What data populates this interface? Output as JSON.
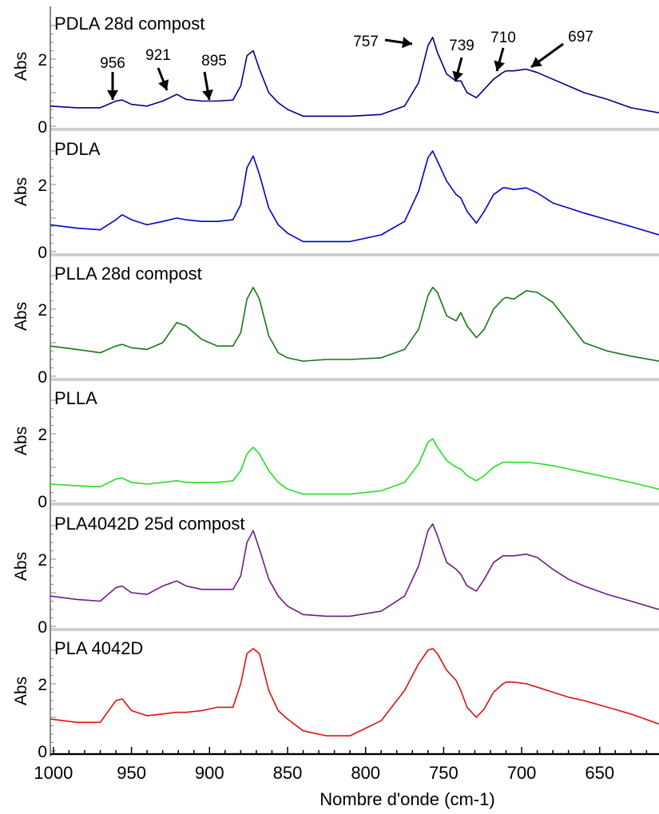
{
  "chart_data": {
    "type": "line",
    "xlabel": "Nombre d'onde (cm-1)",
    "xlim": [
      1002,
      612
    ],
    "x_reversed": true,
    "x_ticks": [
      1000,
      950,
      900,
      850,
      800,
      750,
      700,
      650
    ],
    "x_tick_labels": [
      "1000",
      "950",
      "900",
      "850",
      "800",
      "750",
      "700",
      "650"
    ],
    "ylabel": "Abs",
    "ylim": [
      0,
      3.1
    ],
    "y_tick_labels": [
      "0",
      "2"
    ],
    "y_ticks": [
      0,
      2
    ],
    "layout": "stacked panels, shared x axis",
    "panels": [
      {
        "title": "PDLA 28d compost",
        "color": "#00008B",
        "x": [
          1002,
          985,
          970,
          960,
          956,
          950,
          940,
          930,
          921,
          915,
          905,
          895,
          885,
          880,
          876,
          872,
          868,
          862,
          856,
          850,
          840,
          825,
          810,
          790,
          775,
          766,
          760,
          757,
          754,
          748,
          742,
          739,
          735,
          729,
          724,
          718,
          712,
          710,
          705,
          697,
          690,
          680,
          670,
          660,
          645,
          630,
          612
        ],
        "y": [
          0.6,
          0.55,
          0.55,
          0.75,
          0.78,
          0.65,
          0.6,
          0.75,
          0.95,
          0.8,
          0.75,
          0.75,
          0.78,
          1.2,
          2.1,
          2.25,
          1.7,
          1.0,
          0.7,
          0.5,
          0.3,
          0.3,
          0.3,
          0.35,
          0.6,
          1.3,
          2.4,
          2.65,
          2.2,
          1.55,
          1.35,
          1.35,
          1.0,
          0.85,
          1.1,
          1.4,
          1.6,
          1.65,
          1.65,
          1.7,
          1.6,
          1.4,
          1.2,
          1.0,
          0.8,
          0.55,
          0.4
        ]
      },
      {
        "title": "PDLA",
        "color": "#0000CD",
        "x": [
          1002,
          985,
          970,
          960,
          956,
          950,
          940,
          930,
          921,
          915,
          905,
          895,
          885,
          880,
          876,
          872,
          868,
          862,
          856,
          850,
          840,
          825,
          810,
          790,
          775,
          766,
          760,
          757,
          754,
          748,
          742,
          739,
          735,
          729,
          724,
          718,
          712,
          710,
          705,
          697,
          690,
          680,
          670,
          660,
          645,
          630,
          612
        ],
        "y": [
          0.8,
          0.7,
          0.65,
          0.95,
          1.1,
          0.95,
          0.8,
          0.9,
          1.0,
          0.95,
          0.9,
          0.9,
          0.95,
          1.4,
          2.5,
          2.85,
          2.3,
          1.3,
          0.8,
          0.55,
          0.3,
          0.3,
          0.3,
          0.5,
          0.9,
          1.8,
          2.8,
          3.0,
          2.7,
          2.1,
          1.7,
          1.6,
          1.2,
          0.85,
          1.2,
          1.7,
          1.9,
          1.9,
          1.85,
          1.9,
          1.75,
          1.45,
          1.3,
          1.15,
          0.95,
          0.75,
          0.5
        ]
      },
      {
        "title": "PLLA 28d compost",
        "color": "#147814",
        "x": [
          1002,
          985,
          970,
          960,
          956,
          950,
          940,
          930,
          921,
          915,
          905,
          895,
          885,
          880,
          876,
          872,
          868,
          862,
          856,
          850,
          840,
          825,
          810,
          790,
          775,
          766,
          760,
          757,
          754,
          748,
          742,
          739,
          735,
          729,
          724,
          718,
          712,
          710,
          705,
          697,
          690,
          680,
          670,
          660,
          645,
          630,
          612
        ],
        "y": [
          0.9,
          0.8,
          0.7,
          0.9,
          0.95,
          0.85,
          0.8,
          1.0,
          1.6,
          1.5,
          1.1,
          0.9,
          0.9,
          1.3,
          2.3,
          2.65,
          2.3,
          1.2,
          0.7,
          0.55,
          0.45,
          0.5,
          0.5,
          0.55,
          0.8,
          1.4,
          2.4,
          2.65,
          2.5,
          1.8,
          1.65,
          1.9,
          1.5,
          1.15,
          1.4,
          2.0,
          2.3,
          2.35,
          2.3,
          2.55,
          2.5,
          2.2,
          1.6,
          1.0,
          0.75,
          0.6,
          0.45
        ]
      },
      {
        "title": "PLLA",
        "color": "#22E022",
        "x": [
          1002,
          985,
          970,
          960,
          956,
          950,
          940,
          930,
          921,
          915,
          905,
          895,
          885,
          880,
          876,
          872,
          868,
          862,
          856,
          850,
          840,
          825,
          810,
          790,
          775,
          766,
          760,
          757,
          754,
          748,
          742,
          739,
          735,
          729,
          724,
          718,
          712,
          710,
          705,
          697,
          690,
          680,
          670,
          660,
          645,
          630,
          612
        ],
        "y": [
          0.5,
          0.45,
          0.42,
          0.65,
          0.68,
          0.55,
          0.5,
          0.55,
          0.6,
          0.55,
          0.55,
          0.55,
          0.6,
          0.9,
          1.4,
          1.6,
          1.4,
          0.9,
          0.55,
          0.35,
          0.2,
          0.2,
          0.2,
          0.3,
          0.55,
          1.1,
          1.75,
          1.85,
          1.6,
          1.2,
          1.0,
          0.95,
          0.75,
          0.6,
          0.75,
          1.0,
          1.15,
          1.15,
          1.15,
          1.15,
          1.12,
          1.05,
          0.95,
          0.85,
          0.7,
          0.55,
          0.35
        ]
      },
      {
        "title": "PLA4042D 25d compost",
        "color": "#6E1A87",
        "x": [
          1002,
          985,
          970,
          960,
          956,
          950,
          940,
          930,
          921,
          915,
          905,
          895,
          885,
          880,
          876,
          872,
          868,
          862,
          856,
          850,
          840,
          825,
          810,
          790,
          775,
          766,
          760,
          757,
          754,
          748,
          742,
          739,
          735,
          729,
          724,
          718,
          712,
          710,
          705,
          697,
          690,
          680,
          670,
          660,
          645,
          630,
          612
        ],
        "y": [
          0.9,
          0.8,
          0.75,
          1.15,
          1.2,
          1.0,
          0.95,
          1.2,
          1.35,
          1.2,
          1.1,
          1.1,
          1.1,
          1.5,
          2.5,
          2.85,
          2.3,
          1.4,
          0.9,
          0.6,
          0.35,
          0.3,
          0.3,
          0.45,
          0.9,
          1.8,
          2.85,
          3.05,
          2.7,
          1.9,
          1.7,
          1.55,
          1.2,
          1.05,
          1.4,
          1.9,
          2.1,
          2.1,
          2.1,
          2.15,
          2.05,
          1.7,
          1.4,
          1.2,
          0.95,
          0.75,
          0.5
        ]
      },
      {
        "title": "PLA 4042D",
        "color": "#E01010",
        "x": [
          1002,
          985,
          970,
          960,
          956,
          950,
          940,
          930,
          921,
          915,
          905,
          895,
          885,
          880,
          876,
          872,
          868,
          862,
          856,
          850,
          840,
          825,
          810,
          790,
          775,
          766,
          760,
          757,
          754,
          748,
          742,
          739,
          735,
          729,
          724,
          718,
          712,
          710,
          705,
          697,
          690,
          680,
          670,
          660,
          645,
          630,
          612
        ],
        "y": [
          0.95,
          0.85,
          0.85,
          1.5,
          1.55,
          1.2,
          1.05,
          1.1,
          1.15,
          1.15,
          1.2,
          1.3,
          1.3,
          2.0,
          2.9,
          3.05,
          2.9,
          1.8,
          1.2,
          0.95,
          0.6,
          0.45,
          0.45,
          0.9,
          1.8,
          2.6,
          3.0,
          3.05,
          2.9,
          2.4,
          2.1,
          1.8,
          1.3,
          1.0,
          1.25,
          1.75,
          2.0,
          2.05,
          2.05,
          2.0,
          1.9,
          1.75,
          1.6,
          1.5,
          1.3,
          1.1,
          0.8
        ]
      }
    ],
    "annotations": [
      {
        "label": "956",
        "x": 956,
        "panel": 0
      },
      {
        "label": "921",
        "x": 921,
        "panel": 0
      },
      {
        "label": "895",
        "x": 895,
        "panel": 0
      },
      {
        "label": "757",
        "x": 757,
        "panel": 0
      },
      {
        "label": "739",
        "x": 739,
        "panel": 0
      },
      {
        "label": "710",
        "x": 710,
        "panel": 0
      },
      {
        "label": "697",
        "x": 697,
        "panel": 0
      }
    ],
    "grid": false,
    "legend": "none"
  }
}
